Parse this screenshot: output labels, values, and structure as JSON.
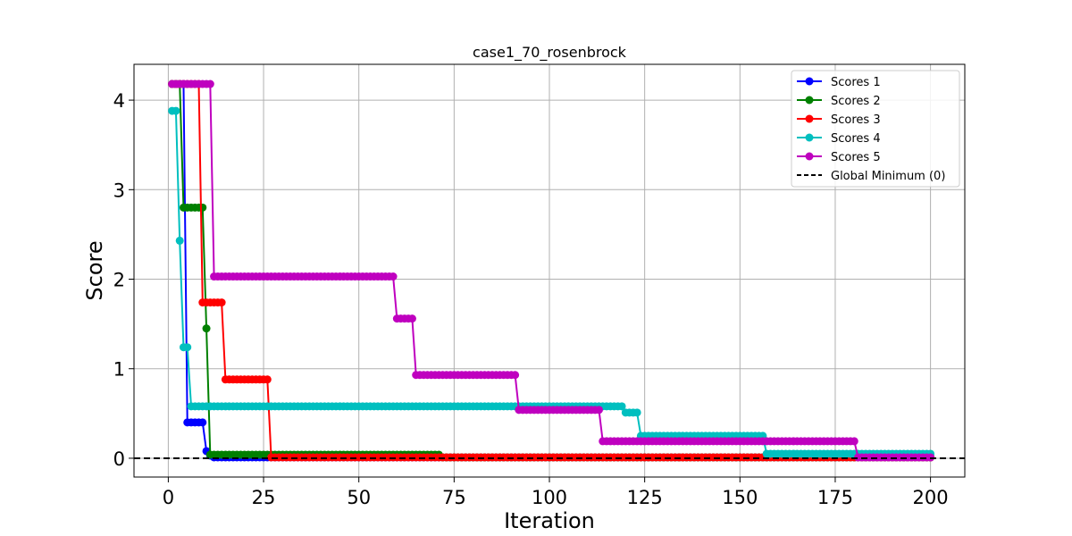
{
  "chart_data": {
    "type": "line",
    "title": "case1_70_rosenbrock",
    "xlabel": "Iteration",
    "ylabel": "Score",
    "xlim": [
      -9,
      209
    ],
    "ylim": [
      -0.21,
      4.4
    ],
    "xticks": [
      0,
      25,
      50,
      75,
      100,
      125,
      150,
      175,
      200
    ],
    "yticks": [
      0,
      1,
      2,
      3,
      4
    ],
    "grid": true,
    "legend_position": "top-right",
    "reference_line": {
      "label": "Global Minimum (0)",
      "y": 0,
      "color": "#000000",
      "style": "dashed"
    },
    "series": [
      {
        "name": "Scores 1",
        "color": "#0000ff",
        "steps": [
          [
            1,
            4.18
          ],
          [
            5,
            0.4
          ],
          [
            10,
            0.08
          ],
          [
            11,
            0.03
          ],
          [
            12,
            0.01
          ],
          [
            200,
            0.01
          ]
        ]
      },
      {
        "name": "Scores 2",
        "color": "#008000",
        "steps": [
          [
            1,
            4.18
          ],
          [
            4,
            2.8
          ],
          [
            10,
            1.45
          ],
          [
            11,
            0.04
          ],
          [
            71,
            0.04
          ],
          [
            72,
            0.01
          ],
          [
            200,
            0.01
          ]
        ]
      },
      {
        "name": "Scores 3",
        "color": "#ff0000",
        "steps": [
          [
            1,
            4.18
          ],
          [
            9,
            1.74
          ],
          [
            15,
            0.88
          ],
          [
            26,
            0.88
          ],
          [
            27,
            0.01
          ],
          [
            200,
            0.01
          ]
        ]
      },
      {
        "name": "Scores 4",
        "color": "#00bfbf",
        "steps": [
          [
            1,
            3.88
          ],
          [
            3,
            2.43
          ],
          [
            4,
            1.24
          ],
          [
            6,
            0.58
          ],
          [
            119,
            0.58
          ],
          [
            120,
            0.51
          ],
          [
            123,
            0.51
          ],
          [
            124,
            0.25
          ],
          [
            153,
            0.25
          ],
          [
            157,
            0.05
          ],
          [
            200,
            0.05
          ]
        ]
      },
      {
        "name": "Scores 5",
        "color": "#bf00bf",
        "steps": [
          [
            1,
            4.18
          ],
          [
            11,
            4.18
          ],
          [
            12,
            2.03
          ],
          [
            59,
            2.03
          ],
          [
            60,
            1.56
          ],
          [
            64,
            1.56
          ],
          [
            65,
            0.93
          ],
          [
            91,
            0.93
          ],
          [
            92,
            0.54
          ],
          [
            112,
            0.54
          ],
          [
            114,
            0.19
          ],
          [
            180,
            0.19
          ],
          [
            181,
            0.01
          ],
          [
            200,
            0.01
          ]
        ]
      }
    ]
  }
}
